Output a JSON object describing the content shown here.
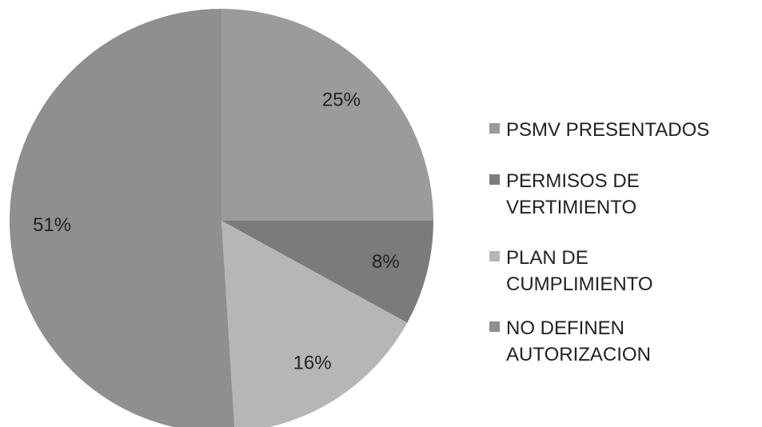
{
  "chart_data": {
    "type": "pie",
    "categories": [
      "PSMV PRESENTADOS",
      "PERMISOS DE\nVERTIMIENTO",
      "PLAN DE\nCUMPLIMIENTO",
      "NO DEFINEN\nAUTORIZACION"
    ],
    "values": [
      25,
      8,
      16,
      51
    ],
    "value_labels": [
      "25%",
      "8%",
      "16%",
      "51%"
    ],
    "colors": [
      "#9b9b9b",
      "#7b7b7b",
      "#b6b6b6",
      "#8f8f8f"
    ],
    "legend": "right"
  }
}
